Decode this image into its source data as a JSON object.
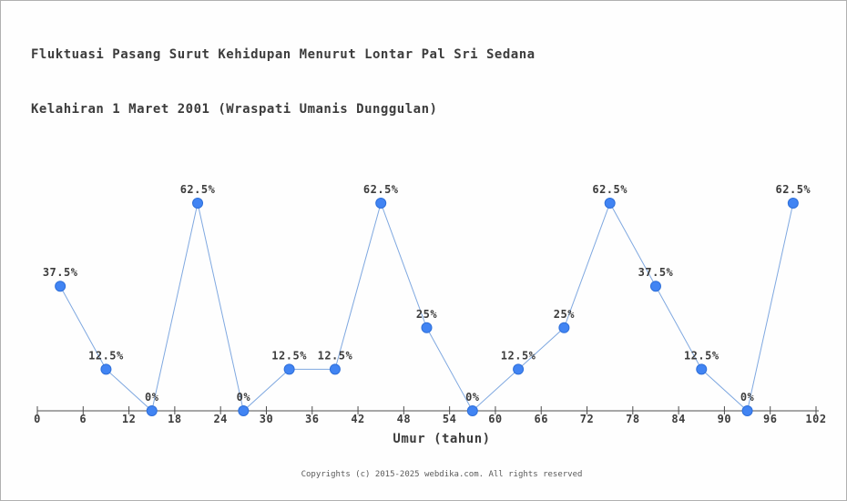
{
  "title": {
    "line1": "Fluktuasi Pasang Surut Kehidupan Menurut Lontar Pal Sri Sedana",
    "line2": "Kelahiran 1 Maret 2001 (Wraspati Umanis Dunggulan)"
  },
  "chart_data": {
    "type": "line",
    "x": [
      3,
      9,
      15,
      21,
      27,
      33,
      39,
      45,
      51,
      57,
      63,
      69,
      75,
      81,
      87,
      93,
      99
    ],
    "values": [
      37.5,
      12.5,
      0,
      62.5,
      0,
      12.5,
      12.5,
      62.5,
      25,
      0,
      12.5,
      25,
      62.5,
      37.5,
      12.5,
      0,
      62.5
    ],
    "point_labels": [
      "37.5%",
      "12.5%",
      "0%",
      "62.5%",
      "0%",
      "12.5%",
      "12.5%",
      "62.5%",
      "25%",
      "0%",
      "12.5%",
      "25%",
      "62.5%",
      "37.5%",
      "12.5%",
      "0%",
      "62.5%"
    ],
    "x_ticks": [
      0,
      6,
      12,
      18,
      24,
      30,
      36,
      42,
      48,
      54,
      60,
      66,
      72,
      78,
      84,
      90,
      96,
      102
    ],
    "xlabel": "Umur (tahun)",
    "xlim": [
      0,
      102
    ],
    "ylim": [
      0,
      100
    ],
    "grid": false,
    "legend": null,
    "colors": {
      "line": "#7fa8e0",
      "marker_fill": "#4184f3",
      "marker_stroke": "#2e6fd9",
      "axis": "#4d4d4d",
      "text": "#3c3c3c"
    }
  },
  "footer": {
    "copyright": "Copyrights (c) 2015-2025 webdika.com. All rights reserved"
  }
}
